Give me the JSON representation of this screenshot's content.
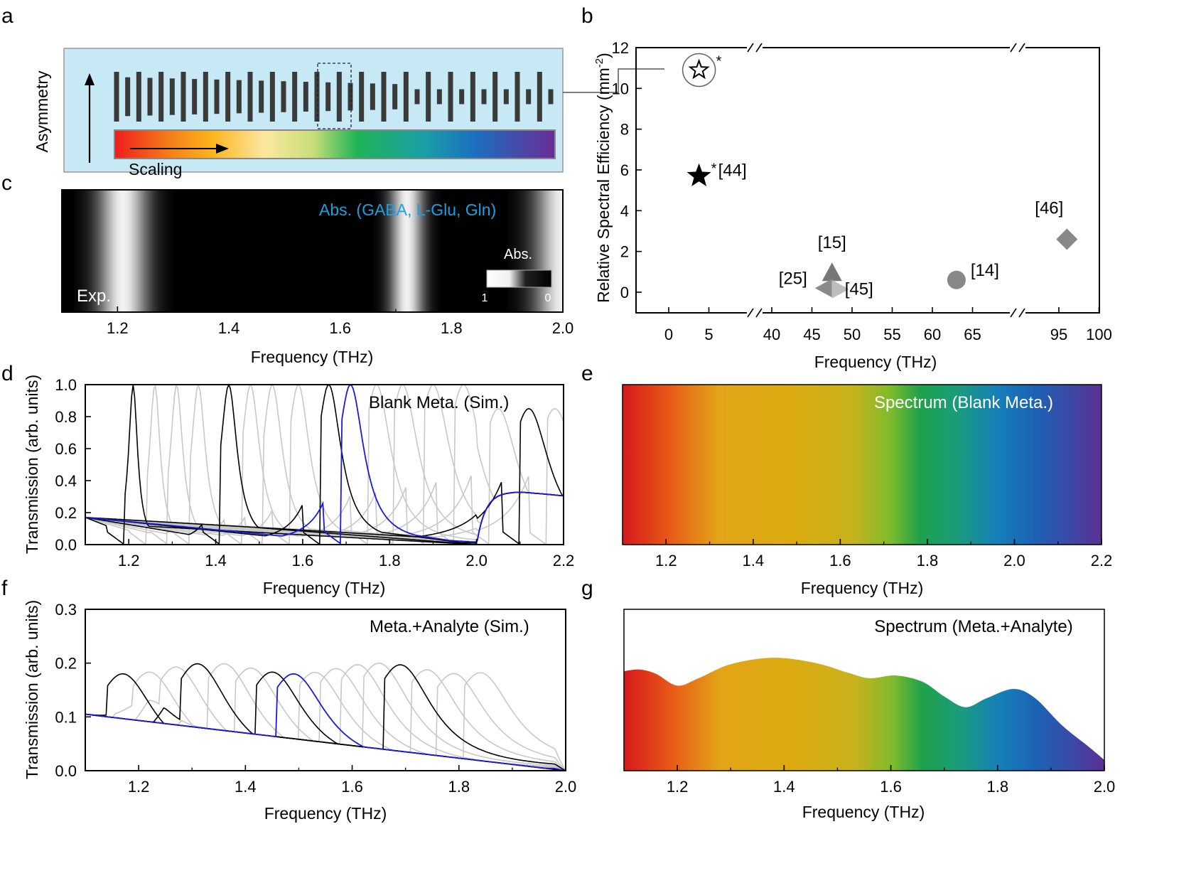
{
  "figure": {
    "panel_letters": [
      "a",
      "b",
      "c",
      "d",
      "e",
      "f",
      "g"
    ]
  },
  "chart_data": [
    {
      "panel": "a",
      "type": "diagram",
      "title": "",
      "ylabel": "Asymmetry",
      "xlabel": "Scaling",
      "n_resonator_pairs": 20,
      "colors": {
        "background": "#c6e9f5",
        "bar": "#3a3a3a"
      }
    },
    {
      "panel": "b",
      "type": "scatter",
      "xlabel": "Frequency (THz)",
      "ylabel_text": "Relative Spectral Efficiency (mm",
      "ylabel_sup": "-2",
      "ylabel_end": ")",
      "ylim": [
        -1,
        12
      ],
      "yticks": [
        "0",
        "2",
        "4",
        "6",
        "8",
        "10",
        "12"
      ],
      "xticks": [
        "0",
        "5",
        "40",
        "45",
        "50",
        "55",
        "60",
        "65",
        "95",
        "100"
      ],
      "points": [
        {
          "label": "*",
          "x": 2,
          "y": 10.9,
          "marker": "open-star-circled"
        },
        {
          "label": "[44]",
          "x": 2,
          "y": 5.7,
          "marker": "star"
        },
        {
          "label": "[15]",
          "x": 47.5,
          "y": 0.9,
          "marker": "triangle-up"
        },
        {
          "label": "[25]",
          "x": 47.5,
          "y": 0.2,
          "marker": "triangle-left"
        },
        {
          "label": "[45]",
          "x": 47.5,
          "y": 0.15,
          "marker": "triangle-right"
        },
        {
          "label": "[14]",
          "x": 63,
          "y": 0.6,
          "marker": "circle"
        },
        {
          "label": "[46]",
          "x": 96,
          "y": 2.6,
          "marker": "diamond"
        }
      ]
    },
    {
      "panel": "c",
      "type": "heatmap",
      "xlabel": "Frequency (THz)",
      "xlim": [
        1.1,
        2.0
      ],
      "xticks": [
        "1.2",
        "1.4",
        "1.6",
        "1.8",
        "2.0"
      ],
      "annotation": "Abs. (GABA, L-Glu, Gln)",
      "annotation_color": "#1aa0e0",
      "label": "Exp.",
      "colorbar_title": "Abs.",
      "colorbar_min": "1",
      "colorbar_max": "0",
      "absorption_peaks_thz": [
        1.21,
        1.72,
        2.0
      ]
    },
    {
      "panel": "d",
      "type": "line",
      "title": "Blank Meta. (Sim.)",
      "xlabel": "Frequency (THz)",
      "ylabel": "Transmission (arb. units)",
      "xlim": [
        1.1,
        2.2
      ],
      "ylim": [
        0,
        1.0
      ],
      "xticks": [
        "1.2",
        "1.4",
        "1.6",
        "1.8",
        "2.0",
        "2.2"
      ],
      "yticks": [
        "0.0",
        "0.2",
        "0.4",
        "0.6",
        "0.8",
        "1.0"
      ],
      "resonances_thz": [
        1.21,
        1.26,
        1.31,
        1.36,
        1.43,
        1.48,
        1.53,
        1.59,
        1.66,
        1.71,
        1.77,
        1.83,
        1.9,
        1.97,
        2.05,
        2.12,
        2.18
      ],
      "highlight_black": [
        1.21,
        1.43,
        1.66,
        2.12
      ],
      "highlight_blue": 1.71
    },
    {
      "panel": "e",
      "type": "area",
      "title": "Spectrum (Blank Meta.)",
      "xlabel": "Frequency (THz)",
      "xlim": [
        1.1,
        2.2
      ],
      "xticks": [
        "1.2",
        "1.4",
        "1.6",
        "1.8",
        "2.0",
        "2.2"
      ]
    },
    {
      "panel": "f",
      "type": "line",
      "title": "Meta.+Analyte (Sim.)",
      "xlabel": "Frequency (THz)",
      "ylabel": "Transmission (arb. units)",
      "xlim": [
        1.1,
        2.0
      ],
      "ylim": [
        0,
        0.3
      ],
      "xticks": [
        "1.2",
        "1.4",
        "1.6",
        "1.8",
        "2.0"
      ],
      "yticks": [
        "0.0",
        "0.1",
        "0.2",
        "0.3"
      ],
      "resonances_thz": [
        1.17,
        1.22,
        1.27,
        1.31,
        1.36,
        1.41,
        1.45,
        1.49,
        1.53,
        1.57,
        1.61,
        1.65,
        1.69,
        1.74,
        1.79,
        1.84
      ],
      "highlight_black": [
        1.17,
        1.31,
        1.45,
        1.69
      ],
      "highlight_blue": 1.49
    },
    {
      "panel": "g",
      "type": "area",
      "title": "Spectrum (Meta.+Analyte)",
      "xlabel": "Frequency (THz)",
      "xlim": [
        1.1,
        2.0
      ],
      "xticks": [
        "1.2",
        "1.4",
        "1.6",
        "1.8",
        "2.0"
      ],
      "x": [
        1.1,
        1.13,
        1.16,
        1.2,
        1.24,
        1.3,
        1.38,
        1.46,
        1.52,
        1.56,
        1.61,
        1.66,
        1.7,
        1.74,
        1.78,
        1.83,
        1.87,
        1.92,
        1.97,
        2.0
      ],
      "values": [
        0.185,
        0.188,
        0.18,
        0.158,
        0.172,
        0.198,
        0.21,
        0.2,
        0.182,
        0.172,
        0.177,
        0.165,
        0.138,
        0.118,
        0.135,
        0.152,
        0.135,
        0.085,
        0.045,
        0.02
      ],
      "ylim": [
        0,
        0.3
      ]
    }
  ]
}
